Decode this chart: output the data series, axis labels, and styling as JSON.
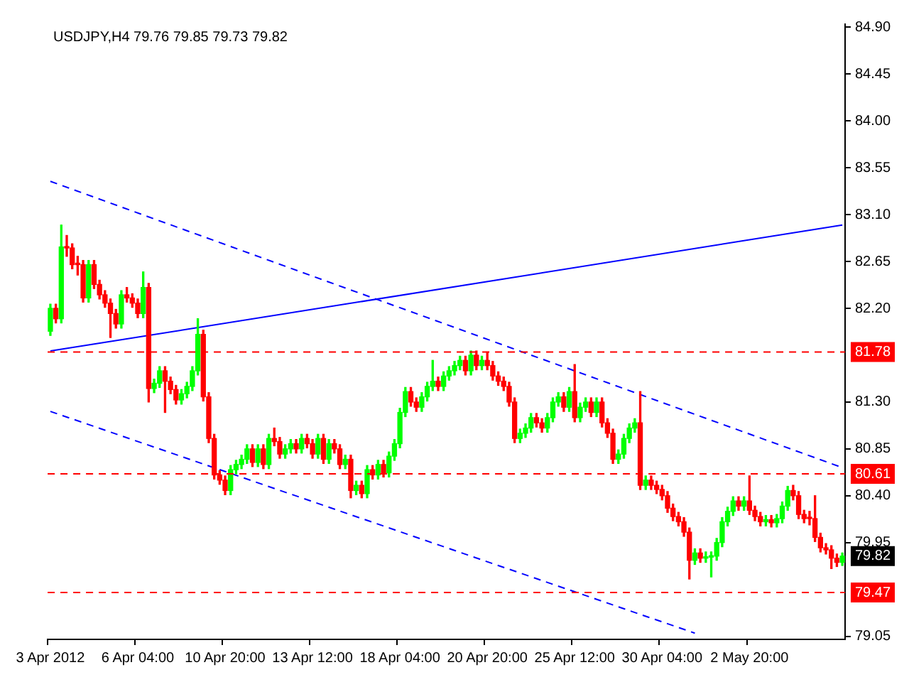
{
  "chart_data": {
    "type": "candlestick",
    "title": "USDJPY,H4 79.76 79.85 79.73 79.82",
    "categories": [
      "3 Apr 2012",
      null,
      null,
      null,
      null,
      null,
      null,
      null,
      null,
      null,
      null,
      null,
      null,
      null,
      null,
      null,
      "6 Apr 04:00",
      null,
      null,
      null,
      null,
      null,
      null,
      null,
      null,
      null,
      null,
      null,
      null,
      null,
      null,
      null,
      "10 Apr 20:00",
      null,
      null,
      null,
      null,
      null,
      null,
      null,
      null,
      null,
      null,
      null,
      null,
      null,
      null,
      null,
      "13 Apr 12:00",
      null,
      null,
      null,
      null,
      null,
      null,
      null,
      null,
      null,
      null,
      null,
      null,
      null,
      null,
      null,
      "18 Apr 04:00",
      null,
      null,
      null,
      null,
      null,
      null,
      null,
      null,
      null,
      null,
      null,
      null,
      null,
      null,
      null,
      "20 Apr 20:00",
      null,
      null,
      null,
      null,
      null,
      null,
      null,
      null,
      null,
      null,
      null,
      null,
      null,
      null,
      null,
      "25 Apr 12:00",
      null,
      null,
      null,
      null,
      null,
      null,
      null,
      null,
      null,
      null,
      null,
      null,
      null,
      null,
      null,
      "30 Apr 04:00",
      null,
      null,
      null,
      null,
      null,
      null,
      null,
      null,
      null,
      null,
      null,
      null,
      null,
      null,
      null,
      "2 May 20:00",
      null,
      null,
      null,
      null,
      null,
      null,
      null,
      null,
      null,
      null,
      null,
      null,
      null,
      null,
      null,
      null,
      null
    ],
    "ohlc": [
      [
        81.98,
        82.24,
        81.94,
        82.2
      ],
      [
        82.2,
        82.24,
        82.06,
        82.1
      ],
      [
        82.1,
        83.0,
        82.06,
        82.79
      ],
      [
        82.79,
        82.9,
        82.7,
        82.78
      ],
      [
        82.78,
        82.82,
        82.58,
        82.62
      ],
      [
        82.62,
        82.7,
        82.52,
        82.62
      ],
      [
        82.62,
        82.66,
        82.26,
        82.3
      ],
      [
        82.3,
        82.66,
        82.26,
        82.62
      ],
      [
        82.62,
        82.66,
        82.39,
        82.43
      ],
      [
        82.43,
        82.47,
        82.29,
        82.33
      ],
      [
        82.33,
        82.37,
        82.21,
        82.25
      ],
      [
        82.25,
        82.29,
        81.92,
        82.15
      ],
      [
        82.15,
        82.19,
        82.01,
        82.05
      ],
      [
        82.05,
        82.37,
        82.01,
        82.33
      ],
      [
        82.33,
        82.4,
        82.26,
        82.3
      ],
      [
        82.3,
        82.34,
        82.21,
        82.25
      ],
      [
        82.25,
        82.29,
        82.11,
        82.15
      ],
      [
        82.15,
        82.55,
        82.11,
        82.4
      ],
      [
        82.4,
        82.44,
        81.3,
        81.43
      ],
      [
        81.43,
        81.52,
        81.39,
        81.48
      ],
      [
        81.48,
        81.64,
        81.44,
        81.6
      ],
      [
        81.6,
        81.64,
        81.2,
        81.5
      ],
      [
        81.5,
        81.54,
        81.38,
        81.42
      ],
      [
        81.42,
        81.46,
        81.28,
        81.32
      ],
      [
        81.32,
        81.42,
        81.28,
        81.38
      ],
      [
        81.38,
        81.49,
        81.34,
        81.45
      ],
      [
        81.45,
        81.64,
        81.41,
        81.6
      ],
      [
        81.6,
        82.1,
        81.56,
        81.95
      ],
      [
        81.95,
        81.99,
        81.31,
        81.35
      ],
      [
        81.35,
        81.39,
        80.91,
        80.95
      ],
      [
        80.95,
        80.99,
        80.56,
        80.6
      ],
      [
        80.6,
        80.64,
        80.51,
        80.55
      ],
      [
        80.55,
        80.59,
        80.41,
        80.45
      ],
      [
        80.45,
        80.69,
        80.41,
        80.65
      ],
      [
        80.65,
        80.74,
        80.61,
        80.7
      ],
      [
        80.7,
        80.79,
        80.66,
        80.75
      ],
      [
        80.75,
        80.89,
        80.71,
        80.85
      ],
      [
        80.85,
        80.89,
        80.68,
        80.72
      ],
      [
        80.72,
        80.89,
        80.68,
        80.85
      ],
      [
        80.85,
        80.89,
        80.66,
        80.7
      ],
      [
        80.7,
        80.99,
        80.66,
        80.95
      ],
      [
        80.95,
        81.05,
        80.88,
        80.92
      ],
      [
        80.92,
        80.96,
        80.76,
        80.8
      ],
      [
        80.8,
        80.89,
        80.76,
        80.85
      ],
      [
        80.85,
        80.94,
        80.81,
        80.9
      ],
      [
        80.9,
        80.94,
        80.81,
        80.85
      ],
      [
        80.85,
        80.99,
        80.81,
        80.95
      ],
      [
        80.95,
        80.99,
        80.86,
        80.9
      ],
      [
        80.9,
        80.94,
        80.76,
        80.8
      ],
      [
        80.8,
        80.99,
        80.76,
        80.95
      ],
      [
        80.95,
        80.99,
        80.71,
        80.75
      ],
      [
        80.75,
        80.94,
        80.71,
        80.9
      ],
      [
        80.9,
        80.94,
        80.81,
        80.85
      ],
      [
        80.85,
        80.89,
        80.66,
        80.7
      ],
      [
        80.7,
        80.79,
        80.66,
        80.75
      ],
      [
        80.75,
        80.79,
        80.38,
        80.45
      ],
      [
        80.45,
        80.54,
        80.41,
        80.5
      ],
      [
        80.5,
        80.54,
        80.38,
        80.42
      ],
      [
        80.42,
        80.69,
        80.38,
        80.65
      ],
      [
        80.65,
        80.69,
        80.56,
        80.6
      ],
      [
        80.6,
        80.74,
        80.56,
        80.7
      ],
      [
        80.7,
        80.74,
        80.58,
        80.62
      ],
      [
        80.62,
        80.82,
        80.58,
        80.78
      ],
      [
        80.78,
        80.94,
        80.74,
        80.9
      ],
      [
        80.9,
        81.24,
        80.86,
        81.2
      ],
      [
        81.2,
        81.44,
        81.16,
        81.4
      ],
      [
        81.4,
        81.44,
        81.26,
        81.3
      ],
      [
        81.3,
        81.34,
        81.21,
        81.25
      ],
      [
        81.25,
        81.39,
        81.21,
        81.35
      ],
      [
        81.35,
        81.49,
        81.31,
        81.45
      ],
      [
        81.45,
        81.7,
        81.41,
        81.5
      ],
      [
        81.5,
        81.54,
        81.41,
        81.45
      ],
      [
        81.45,
        81.59,
        81.41,
        81.55
      ],
      [
        81.55,
        81.64,
        81.51,
        81.6
      ],
      [
        81.6,
        81.69,
        81.56,
        81.65
      ],
      [
        81.65,
        81.74,
        81.61,
        81.7
      ],
      [
        81.7,
        81.74,
        81.56,
        81.6
      ],
      [
        81.6,
        81.79,
        81.56,
        81.75
      ],
      [
        81.75,
        81.79,
        81.61,
        81.65
      ],
      [
        81.65,
        81.74,
        81.61,
        81.7
      ],
      [
        81.7,
        81.78,
        81.61,
        81.65
      ],
      [
        81.65,
        81.69,
        81.51,
        81.55
      ],
      [
        81.55,
        81.59,
        81.46,
        81.5
      ],
      [
        81.5,
        81.54,
        81.41,
        81.45
      ],
      [
        81.45,
        81.49,
        81.26,
        81.3
      ],
      [
        81.3,
        81.34,
        80.91,
        80.95
      ],
      [
        80.95,
        81.04,
        80.91,
        81.0
      ],
      [
        81.0,
        81.09,
        80.96,
        81.05
      ],
      [
        81.05,
        81.19,
        81.01,
        81.15
      ],
      [
        81.15,
        81.19,
        81.06,
        81.1
      ],
      [
        81.1,
        81.14,
        81.01,
        81.05
      ],
      [
        81.05,
        81.19,
        81.01,
        81.15
      ],
      [
        81.15,
        81.34,
        81.11,
        81.3
      ],
      [
        81.3,
        81.39,
        81.26,
        81.35
      ],
      [
        81.35,
        81.39,
        81.21,
        81.25
      ],
      [
        81.25,
        81.44,
        81.21,
        81.4
      ],
      [
        81.4,
        81.66,
        81.11,
        81.15
      ],
      [
        81.15,
        81.29,
        81.11,
        81.25
      ],
      [
        81.25,
        81.34,
        81.21,
        81.3
      ],
      [
        81.3,
        81.34,
        81.16,
        81.2
      ],
      [
        81.2,
        81.34,
        81.16,
        81.3
      ],
      [
        81.3,
        81.34,
        81.06,
        81.1
      ],
      [
        81.1,
        81.14,
        80.96,
        81.0
      ],
      [
        81.0,
        81.04,
        80.71,
        80.75
      ],
      [
        80.75,
        80.84,
        80.71,
        80.8
      ],
      [
        80.8,
        80.99,
        80.76,
        80.95
      ],
      [
        80.95,
        81.09,
        80.91,
        81.05
      ],
      [
        81.05,
        81.14,
        81.01,
        81.1
      ],
      [
        81.1,
        81.4,
        80.46,
        80.5
      ],
      [
        80.5,
        80.59,
        80.46,
        80.55
      ],
      [
        80.55,
        80.59,
        80.46,
        80.5
      ],
      [
        80.5,
        80.54,
        80.42,
        80.46
      ],
      [
        80.46,
        80.5,
        80.36,
        80.4
      ],
      [
        80.4,
        80.44,
        80.24,
        80.28
      ],
      [
        80.28,
        80.32,
        80.16,
        80.2
      ],
      [
        80.2,
        80.24,
        80.11,
        80.15
      ],
      [
        80.15,
        80.19,
        80.01,
        80.05
      ],
      [
        80.05,
        80.09,
        79.6,
        79.78
      ],
      [
        79.78,
        79.89,
        79.74,
        79.85
      ],
      [
        79.85,
        79.89,
        79.76,
        79.8
      ],
      [
        79.8,
        79.86,
        79.76,
        79.81
      ],
      [
        79.81,
        79.86,
        79.62,
        79.82
      ],
      [
        79.82,
        79.99,
        79.78,
        79.95
      ],
      [
        79.95,
        80.19,
        79.91,
        80.15
      ],
      [
        80.15,
        80.29,
        80.11,
        80.25
      ],
      [
        80.25,
        80.39,
        80.21,
        80.35
      ],
      [
        80.35,
        80.39,
        80.26,
        80.3
      ],
      [
        80.3,
        80.39,
        80.26,
        80.35
      ],
      [
        80.35,
        80.59,
        80.22,
        80.26
      ],
      [
        80.26,
        80.3,
        80.16,
        80.2
      ],
      [
        80.2,
        80.24,
        80.11,
        80.15
      ],
      [
        80.15,
        80.21,
        80.11,
        80.17
      ],
      [
        80.17,
        80.21,
        80.1,
        80.14
      ],
      [
        80.14,
        80.22,
        80.1,
        80.18
      ],
      [
        80.18,
        80.34,
        80.14,
        80.3
      ],
      [
        80.3,
        80.49,
        80.26,
        80.45
      ],
      [
        80.45,
        80.5,
        80.36,
        80.4
      ],
      [
        80.4,
        80.44,
        80.18,
        80.22
      ],
      [
        80.22,
        80.26,
        80.14,
        80.18
      ],
      [
        80.18,
        80.25,
        80.12,
        80.18
      ],
      [
        80.18,
        80.4,
        79.96,
        80.0
      ],
      [
        80.0,
        80.04,
        79.86,
        79.9
      ],
      [
        79.9,
        79.94,
        79.84,
        79.88
      ],
      [
        79.88,
        79.92,
        79.7,
        79.8
      ],
      [
        79.8,
        79.84,
        79.72,
        79.76
      ],
      [
        79.76,
        79.85,
        79.73,
        79.82
      ]
    ],
    "colors": [
      "#00ff00",
      "#ff0000",
      "#00ff00",
      "#ff0000",
      "#ff0000",
      "#ff0000",
      "#ff0000",
      "#00ff00",
      "#ff0000",
      "#ff0000",
      "#ff0000",
      "#ff0000",
      "#ff0000",
      "#00ff00",
      "#ff0000",
      "#ff0000",
      "#ff0000",
      "#00ff00",
      "#ff0000",
      "#00ff00",
      "#00ff00",
      "#ff0000",
      "#ff0000",
      "#ff0000",
      "#00ff00",
      "#00ff00",
      "#00ff00",
      "#00ff00",
      "#ff0000",
      "#ff0000",
      "#ff0000",
      "#ff0000",
      "#ff0000",
      "#00ff00",
      "#00ff00",
      "#00ff00",
      "#00ff00",
      "#ff0000",
      "#00ff00",
      "#ff0000",
      "#00ff00",
      "#ff0000",
      "#ff0000",
      "#00ff00",
      "#00ff00",
      "#ff0000",
      "#00ff00",
      "#ff0000",
      "#ff0000",
      "#00ff00",
      "#ff0000",
      "#00ff00",
      "#ff0000",
      "#ff0000",
      "#00ff00",
      "#ff0000",
      "#00ff00",
      "#ff0000",
      "#00ff00",
      "#ff0000",
      "#00ff00",
      "#ff0000",
      "#00ff00",
      "#00ff00",
      "#00ff00",
      "#00ff00",
      "#ff0000",
      "#ff0000",
      "#00ff00",
      "#00ff00",
      "#00ff00",
      "#ff0000",
      "#00ff00",
      "#00ff00",
      "#00ff00",
      "#00ff00",
      "#ff0000",
      "#00ff00",
      "#ff0000",
      "#00ff00",
      "#ff0000",
      "#ff0000",
      "#ff0000",
      "#ff0000",
      "#ff0000",
      "#ff0000",
      "#00ff00",
      "#00ff00",
      "#00ff00",
      "#ff0000",
      "#ff0000",
      "#00ff00",
      "#00ff00",
      "#00ff00",
      "#ff0000",
      "#00ff00",
      "#ff0000",
      "#00ff00",
      "#00ff00",
      "#ff0000",
      "#00ff00",
      "#ff0000",
      "#ff0000",
      "#ff0000",
      "#00ff00",
      "#00ff00",
      "#00ff00",
      "#00ff00",
      "#ff0000",
      "#00ff00",
      "#ff0000",
      "#ff0000",
      "#ff0000",
      "#ff0000",
      "#ff0000",
      "#ff0000",
      "#ff0000",
      "#ff0000",
      "#00ff00",
      "#ff0000",
      "#00ff00",
      "#00ff00",
      "#00ff00",
      "#00ff00",
      "#00ff00",
      "#00ff00",
      "#ff0000",
      "#00ff00",
      "#ff0000",
      "#ff0000",
      "#ff0000",
      "#00ff00",
      "#ff0000",
      "#00ff00",
      "#00ff00",
      "#00ff00",
      "#ff0000",
      "#ff0000",
      "#ff0000",
      "#ff0000",
      "#ff0000",
      "#ff0000",
      "#ff0000",
      "#ff0000",
      "#ff0000",
      "#00ff00"
    ],
    "series": [
      {
        "type": "line",
        "color": "#0000ff",
        "line_style": "solid",
        "values": [
          81.79,
          null,
          null,
          null,
          null,
          null,
          null,
          null,
          null,
          null,
          null,
          null,
          null,
          null,
          null,
          null,
          null,
          null,
          null,
          null,
          null,
          null,
          null,
          null,
          null,
          null,
          null,
          null,
          null,
          null,
          null,
          null,
          null,
          null,
          null,
          null,
          null,
          null,
          null,
          null,
          null,
          null,
          null,
          null,
          null,
          null,
          null,
          null,
          null,
          null,
          null,
          null,
          null,
          null,
          null,
          null,
          null,
          null,
          null,
          null,
          null,
          null,
          null,
          null,
          null,
          null,
          null,
          null,
          null,
          null,
          null,
          null,
          null,
          null,
          null,
          null,
          null,
          null,
          null,
          null,
          null,
          null,
          null,
          null,
          null,
          null,
          null,
          null,
          null,
          null,
          null,
          null,
          null,
          null,
          null,
          null,
          null,
          null,
          null,
          null,
          null,
          null,
          null,
          null,
          null,
          null,
          null,
          null,
          null,
          null,
          null,
          null,
          null,
          null,
          null,
          null,
          null,
          null,
          null,
          null,
          null,
          null,
          null,
          null,
          null,
          null,
          null,
          null,
          null,
          null,
          null,
          null,
          null,
          null,
          null,
          null,
          null,
          null,
          null,
          null,
          null,
          null,
          null,
          null,
          null,
          83.0
        ]
      },
      {
        "type": "line",
        "color": "#0000ff",
        "line_style": "dashed",
        "values": [
          83.42,
          null,
          null,
          null,
          null,
          null,
          null,
          null,
          null,
          null,
          null,
          null,
          null,
          null,
          null,
          null,
          null,
          null,
          null,
          null,
          null,
          null,
          null,
          null,
          null,
          null,
          null,
          null,
          null,
          null,
          null,
          null,
          null,
          null,
          null,
          null,
          null,
          null,
          null,
          null,
          null,
          null,
          null,
          null,
          null,
          null,
          null,
          null,
          null,
          null,
          null,
          null,
          null,
          null,
          null,
          null,
          null,
          null,
          null,
          null,
          null,
          null,
          null,
          null,
          null,
          null,
          null,
          null,
          null,
          null,
          null,
          null,
          null,
          null,
          null,
          null,
          null,
          null,
          null,
          null,
          null,
          null,
          null,
          null,
          null,
          null,
          null,
          null,
          null,
          null,
          null,
          null,
          null,
          null,
          null,
          null,
          null,
          null,
          null,
          null,
          null,
          null,
          null,
          null,
          null,
          null,
          null,
          null,
          null,
          null,
          null,
          null,
          null,
          null,
          null,
          null,
          null,
          null,
          null,
          null,
          null,
          null,
          null,
          null,
          null,
          null,
          null,
          null,
          null,
          null,
          null,
          null,
          null,
          null,
          null,
          null,
          null,
          null,
          null,
          null,
          null,
          null,
          null,
          null,
          null,
          80.67
        ]
      },
      {
        "type": "line",
        "color": "#0000ff",
        "line_style": "dashed",
        "values": [
          81.21,
          null,
          null,
          null,
          null,
          null,
          null,
          null,
          null,
          null,
          null,
          null,
          null,
          null,
          null,
          null,
          null,
          null,
          null,
          null,
          null,
          null,
          null,
          null,
          null,
          null,
          null,
          null,
          null,
          null,
          null,
          null,
          null,
          null,
          null,
          null,
          null,
          null,
          null,
          null,
          null,
          null,
          null,
          null,
          null,
          null,
          null,
          null,
          null,
          null,
          null,
          null,
          null,
          null,
          null,
          null,
          null,
          null,
          null,
          null,
          null,
          null,
          null,
          null,
          null,
          null,
          null,
          null,
          null,
          null,
          null,
          null,
          null,
          null,
          null,
          null,
          null,
          null,
          null,
          null,
          null,
          null,
          null,
          null,
          null,
          null,
          null,
          null,
          null,
          null,
          null,
          null,
          null,
          null,
          null,
          null,
          null,
          null,
          null,
          null,
          null,
          null,
          null,
          null,
          null,
          null,
          null,
          null,
          null,
          null,
          null,
          null,
          null,
          null,
          null,
          null,
          null,
          null,
          79.08,
          null,
          null,
          null,
          null,
          null,
          null,
          null,
          null,
          null,
          null,
          null,
          null,
          null,
          null,
          null,
          null,
          null,
          null,
          null,
          null,
          null,
          null,
          null,
          null,
          null,
          null,
          null
        ]
      }
    ],
    "ylim": [
      79.02,
      84.93
    ],
    "yticks": [
      {
        "value": 84.9,
        "label": "84.90"
      },
      84.45,
      {
        "value": 84.0,
        "label": "84.00"
      },
      83.55,
      {
        "value": 83.1,
        "label": "83.10"
      },
      82.65,
      {
        "value": 82.2,
        "label": "82.20"
      },
      {
        "value": 81.3,
        "label": "81.30"
      },
      80.85,
      {
        "value": 80.4,
        "label": "80.40"
      },
      79.95,
      79.05
    ],
    "ref_lines": [
      {
        "axis": "y",
        "value": 81.78,
        "label": "81.78",
        "color": "#ff0000",
        "line_style": "dashed"
      },
      {
        "axis": "y",
        "value": 80.61,
        "label": "80.61",
        "color": "#ff0000",
        "line_style": "dashed"
      },
      {
        "axis": "y",
        "value": 79.47,
        "label": "79.47",
        "color": "#ff0000",
        "line_style": "dashed"
      }
    ],
    "annotations": [
      "79.82"
    ]
  }
}
